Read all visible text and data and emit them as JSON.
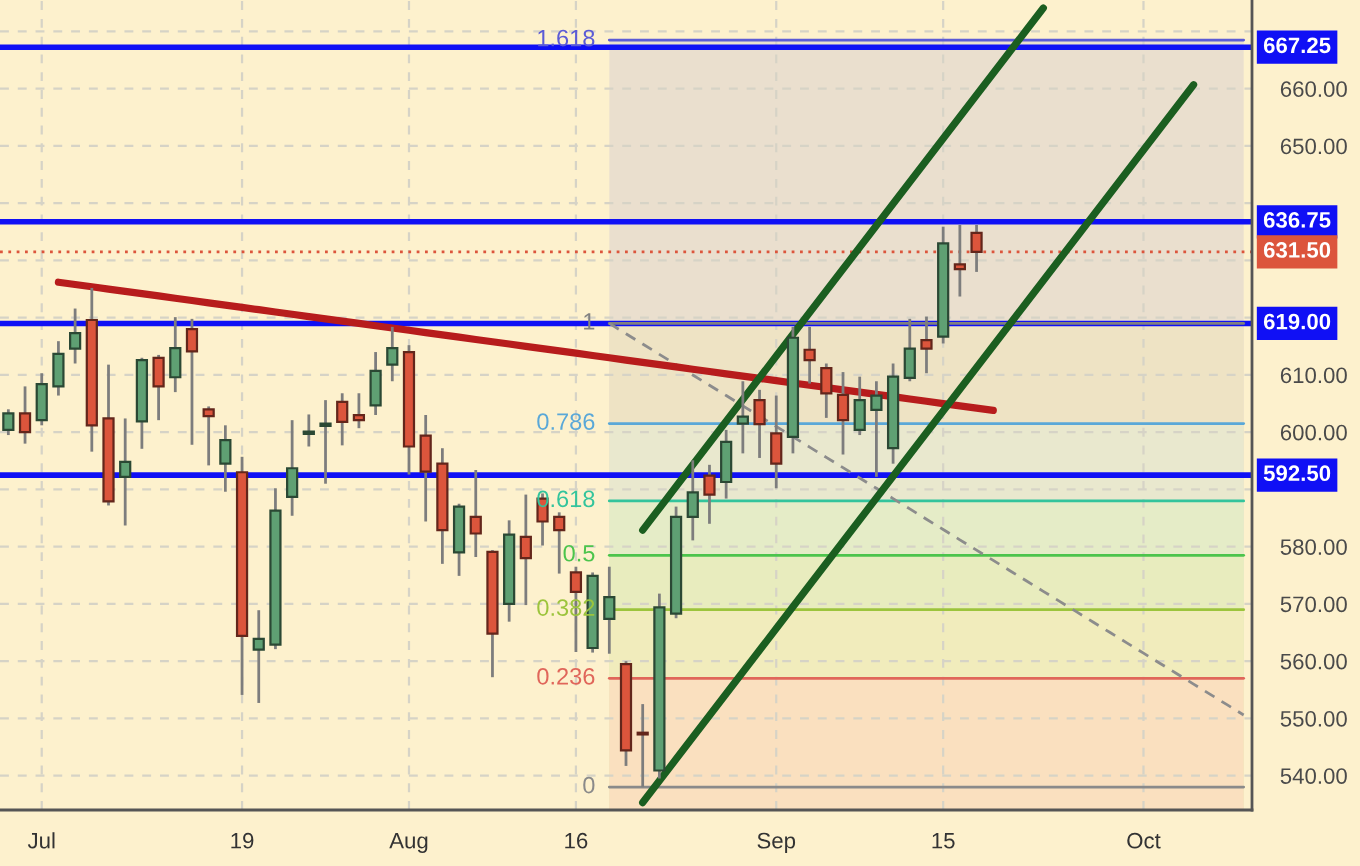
{
  "chart_data": {
    "type": "candlestick",
    "categories": [
      null,
      null,
      "Jul",
      null,
      null,
      null,
      null,
      null,
      null,
      null,
      null,
      null,
      null,
      null,
      "19",
      null,
      null,
      null,
      null,
      null,
      null,
      null,
      null,
      null,
      "Aug",
      null,
      null,
      null,
      null,
      null,
      null,
      null,
      null,
      null,
      "16",
      null,
      null,
      null,
      null,
      null,
      null,
      null,
      null,
      null,
      null,
      null,
      "Sep",
      null,
      null,
      null,
      null,
      null,
      null,
      null,
      null,
      null,
      "15",
      null,
      null,
      null,
      null,
      null,
      null,
      null,
      null,
      null,
      null,
      null,
      "Oct",
      null,
      null,
      null,
      null,
      null,
      null
    ],
    "ohlc": [
      [
        600.4,
        604.0,
        599.5,
        603.3
      ],
      [
        603.3,
        608.0,
        598.0,
        600.0
      ],
      [
        602.1,
        610.3,
        601.2,
        608.4
      ],
      [
        608.0,
        615.9,
        606.4,
        613.7
      ],
      [
        614.6,
        621.6,
        612.0,
        617.3
      ],
      [
        619.6,
        625.2,
        596.6,
        601.2
      ],
      [
        602.4,
        611.8,
        587.2,
        587.9
      ],
      [
        592.2,
        602.4,
        583.7,
        594.8
      ],
      [
        601.9,
        613.0,
        597.1,
        612.6
      ],
      [
        613.0,
        613.5,
        602.1,
        608.0
      ],
      [
        609.6,
        620.1,
        607.0,
        614.7
      ],
      [
        618.0,
        619.8,
        597.8,
        614.1
      ],
      [
        604.0,
        604.5,
        594.2,
        602.8
      ],
      [
        594.5,
        601.2,
        589.6,
        598.6
      ],
      [
        593.0,
        595.7,
        554.1,
        564.4
      ],
      [
        562.0,
        568.9,
        552.7,
        563.9
      ],
      [
        562.9,
        590.2,
        562.1,
        586.3
      ],
      [
        588.7,
        602.1,
        585.4,
        593.7
      ],
      [
        599.7,
        603.1,
        597.5,
        600.1
      ],
      [
        601.1,
        605.6,
        591.0,
        601.5
      ],
      [
        605.3,
        606.8,
        597.7,
        601.8
      ],
      [
        603.0,
        606.8,
        600.7,
        602.1
      ],
      [
        604.7,
        614.0,
        603.0,
        610.7
      ],
      [
        611.8,
        618.4,
        608.9,
        614.7
      ],
      [
        614.0,
        615.2,
        592.6,
        597.5
      ],
      [
        599.4,
        603.0,
        584.4,
        593.1
      ],
      [
        594.5,
        597.2,
        577.0,
        582.9
      ],
      [
        579.0,
        587.5,
        574.9,
        587.0
      ],
      [
        585.2,
        593.4,
        578.2,
        582.3
      ],
      [
        579.1,
        579.4,
        557.2,
        564.8
      ],
      [
        570.0,
        584.6,
        566.9,
        582.1
      ],
      [
        581.7,
        589.1,
        569.8,
        578.0
      ],
      [
        588.4,
        589.3,
        580.2,
        584.4
      ],
      [
        585.2,
        586.0,
        575.3,
        582.9
      ],
      [
        575.5,
        576.5,
        561.6,
        572.1
      ],
      [
        562.3,
        575.5,
        561.5,
        574.9
      ],
      [
        567.4,
        576.5,
        561.3,
        571.2
      ],
      [
        559.5,
        560.0,
        541.7,
        544.4
      ],
      [
        547.5,
        552.5,
        538.0,
        547.2
      ],
      [
        540.9,
        571.8,
        539.5,
        569.4
      ],
      [
        568.3,
        587.0,
        567.5,
        585.2
      ],
      [
        585.2,
        595.1,
        581.1,
        589.5
      ],
      [
        592.4,
        594.3,
        584.0,
        589.1
      ],
      [
        591.3,
        600.4,
        588.4,
        598.3
      ],
      [
        601.5,
        608.9,
        596.3,
        602.7
      ],
      [
        605.6,
        607.4,
        595.5,
        601.4
      ],
      [
        599.8,
        606.4,
        590.2,
        594.5
      ],
      [
        599.2,
        618.4,
        596.3,
        616.5
      ],
      [
        614.4,
        618.4,
        608.5,
        612.6
      ],
      [
        611.2,
        612.0,
        602.5,
        606.8
      ],
      [
        606.5,
        610.5,
        596.1,
        602.1
      ],
      [
        600.4,
        609.7,
        599.5,
        605.6
      ],
      [
        603.9,
        608.9,
        592.2,
        606.4
      ],
      [
        597.2,
        612.0,
        594.5,
        609.7
      ],
      [
        609.5,
        619.8,
        608.9,
        614.6
      ],
      [
        616.1,
        620.2,
        610.3,
        614.6
      ],
      [
        616.7,
        635.9,
        615.5,
        633.0
      ],
      [
        629.3,
        636.2,
        623.7,
        628.5
      ],
      [
        634.8,
        636.2,
        628.0,
        631.5
      ],
      null,
      null,
      null,
      null,
      null,
      null,
      null,
      null,
      null,
      null,
      null,
      null,
      null,
      null,
      null,
      null
    ],
    "colors": [
      "#5fa073",
      "#dc553c",
      "#5fa073",
      "#5fa073",
      "#5fa073",
      "#dc553c",
      "#dc553c",
      "#5fa073",
      "#5fa073",
      "#dc553c",
      "#5fa073",
      "#dc553c",
      "#dc553c",
      "#5fa073",
      "#dc553c",
      "#5fa073",
      "#5fa073",
      "#5fa073",
      "#5fa073",
      "#5fa073",
      "#dc553c",
      "#dc553c",
      "#5fa073",
      "#5fa073",
      "#dc553c",
      "#dc553c",
      "#dc553c",
      "#5fa073",
      "#dc553c",
      "#dc553c",
      "#5fa073",
      "#dc553c",
      "#dc553c",
      "#dc553c",
      "#dc553c",
      "#5fa073",
      "#5fa073",
      "#dc553c",
      "#dc553c",
      "#5fa073",
      "#5fa073",
      "#5fa073",
      "#dc553c",
      "#5fa073",
      "#5fa073",
      "#dc553c",
      "#dc553c",
      "#5fa073",
      "#dc553c",
      "#dc553c",
      "#dc553c",
      "#5fa073",
      "#5fa073",
      "#5fa073",
      "#5fa073",
      "#dc553c",
      "#5fa073",
      "#dc553c",
      "#dc553c",
      null,
      null,
      null,
      null,
      null,
      null,
      null,
      null,
      null,
      null,
      null,
      null,
      null,
      null,
      null,
      null
    ],
    "series": [
      {
        "type": "area",
        "name": "1.618",
        "color": "#5b5bd6",
        "values": [
          null,
          null,
          null,
          null,
          null,
          null,
          null,
          null,
          null,
          null,
          null,
          null,
          null,
          null,
          null,
          null,
          null,
          null,
          null,
          null,
          null,
          null,
          null,
          null,
          null,
          null,
          null,
          null,
          null,
          null,
          null,
          null,
          null,
          null,
          null,
          null,
          668.5,
          668.5,
          668.5,
          668.5,
          668.5,
          668.5,
          668.5,
          668.5,
          668.5,
          668.5,
          668.5,
          668.5,
          668.5,
          668.5,
          668.5,
          668.5,
          668.5,
          668.5,
          668.5,
          668.5,
          668.5,
          668.5,
          668.5,
          668.5,
          668.5,
          668.5,
          668.5,
          668.5,
          668.5,
          668.5,
          668.5,
          668.5,
          668.5,
          668.5,
          668.5,
          668.5,
          668.5,
          668.5,
          668.5
        ]
      },
      {
        "type": "area",
        "name": "1",
        "color": "#808080",
        "values": [
          null,
          null,
          null,
          null,
          null,
          null,
          null,
          null,
          null,
          null,
          null,
          null,
          null,
          null,
          null,
          null,
          null,
          null,
          null,
          null,
          null,
          null,
          null,
          null,
          null,
          null,
          null,
          null,
          null,
          null,
          null,
          null,
          null,
          null,
          null,
          null,
          619,
          619,
          619,
          619,
          619,
          619,
          619,
          619,
          619,
          619,
          619,
          619,
          619,
          619,
          619,
          619,
          619,
          619,
          619,
          619,
          619,
          619,
          619,
          619,
          619,
          619,
          619,
          619,
          619,
          619,
          619,
          619,
          619,
          619,
          619,
          619,
          619,
          619,
          619
        ]
      },
      {
        "type": "area",
        "name": "0.786",
        "color": "#5aa8d8",
        "values": [
          null,
          null,
          null,
          null,
          null,
          null,
          null,
          null,
          null,
          null,
          null,
          null,
          null,
          null,
          null,
          null,
          null,
          null,
          null,
          null,
          null,
          null,
          null,
          null,
          null,
          null,
          null,
          null,
          null,
          null,
          null,
          null,
          null,
          null,
          null,
          null,
          601.5,
          601.5,
          601.5,
          601.5,
          601.5,
          601.5,
          601.5,
          601.5,
          601.5,
          601.5,
          601.5,
          601.5,
          601.5,
          601.5,
          601.5,
          601.5,
          601.5,
          601.5,
          601.5,
          601.5,
          601.5,
          601.5,
          601.5,
          601.5,
          601.5,
          601.5,
          601.5,
          601.5,
          601.5,
          601.5,
          601.5,
          601.5,
          601.5,
          601.5,
          601.5,
          601.5,
          601.5,
          601.5,
          601.5
        ]
      },
      {
        "type": "area",
        "name": "0.618",
        "color": "#33c49c",
        "values": [
          null,
          null,
          null,
          null,
          null,
          null,
          null,
          null,
          null,
          null,
          null,
          null,
          null,
          null,
          null,
          null,
          null,
          null,
          null,
          null,
          null,
          null,
          null,
          null,
          null,
          null,
          null,
          null,
          null,
          null,
          null,
          null,
          null,
          null,
          null,
          null,
          588,
          588,
          588,
          588,
          588,
          588,
          588,
          588,
          588,
          588,
          588,
          588,
          588,
          588,
          588,
          588,
          588,
          588,
          588,
          588,
          588,
          588,
          588,
          588,
          588,
          588,
          588,
          588,
          588,
          588,
          588,
          588,
          588,
          588,
          588,
          588,
          588,
          588,
          588
        ]
      },
      {
        "type": "area",
        "name": "0.5",
        "color": "#4cc44c",
        "values": [
          null,
          null,
          null,
          null,
          null,
          null,
          null,
          null,
          null,
          null,
          null,
          null,
          null,
          null,
          null,
          null,
          null,
          null,
          null,
          null,
          null,
          null,
          null,
          null,
          null,
          null,
          null,
          null,
          null,
          null,
          null,
          null,
          null,
          null,
          null,
          null,
          578.5,
          578.5,
          578.5,
          578.5,
          578.5,
          578.5,
          578.5,
          578.5,
          578.5,
          578.5,
          578.5,
          578.5,
          578.5,
          578.5,
          578.5,
          578.5,
          578.5,
          578.5,
          578.5,
          578.5,
          578.5,
          578.5,
          578.5,
          578.5,
          578.5,
          578.5,
          578.5,
          578.5,
          578.5,
          578.5,
          578.5,
          578.5,
          578.5,
          578.5,
          578.5,
          578.5,
          578.5,
          578.5,
          578.5
        ]
      },
      {
        "type": "area",
        "name": "0.382",
        "color": "#9cc43c",
        "values": [
          null,
          null,
          null,
          null,
          null,
          null,
          null,
          null,
          null,
          null,
          null,
          null,
          null,
          null,
          null,
          null,
          null,
          null,
          null,
          null,
          null,
          null,
          null,
          null,
          null,
          null,
          null,
          null,
          null,
          null,
          null,
          null,
          null,
          null,
          null,
          null,
          569,
          569,
          569,
          569,
          569,
          569,
          569,
          569,
          569,
          569,
          569,
          569,
          569,
          569,
          569,
          569,
          569,
          569,
          569,
          569,
          569,
          569,
          569,
          569,
          569,
          569,
          569,
          569,
          569,
          569,
          569,
          569,
          569,
          569,
          569,
          569,
          569,
          569,
          569
        ]
      },
      {
        "type": "area",
        "name": "0.236",
        "color": "#e0665a",
        "values": [
          null,
          null,
          null,
          null,
          null,
          null,
          null,
          null,
          null,
          null,
          null,
          null,
          null,
          null,
          null,
          null,
          null,
          null,
          null,
          null,
          null,
          null,
          null,
          null,
          null,
          null,
          null,
          null,
          null,
          null,
          null,
          null,
          null,
          null,
          null,
          null,
          557,
          557,
          557,
          557,
          557,
          557,
          557,
          557,
          557,
          557,
          557,
          557,
          557,
          557,
          557,
          557,
          557,
          557,
          557,
          557,
          557,
          557,
          557,
          557,
          557,
          557,
          557,
          557,
          557,
          557,
          557,
          557,
          557,
          557,
          557,
          557,
          557,
          557,
          557
        ]
      },
      {
        "type": "line",
        "name": "0",
        "color": "#8a8a8a",
        "values": [
          null,
          null,
          null,
          null,
          null,
          null,
          null,
          null,
          null,
          null,
          null,
          null,
          null,
          null,
          null,
          null,
          null,
          null,
          null,
          null,
          null,
          null,
          null,
          null,
          null,
          null,
          null,
          null,
          null,
          null,
          null,
          null,
          null,
          null,
          null,
          null,
          538,
          538,
          538,
          538,
          538,
          538,
          538,
          538,
          538,
          538,
          538,
          538,
          538,
          538,
          538,
          538,
          538,
          538,
          538,
          538,
          538,
          538,
          538,
          538,
          538,
          538,
          538,
          538,
          538,
          538,
          538,
          538,
          538,
          538,
          538,
          538,
          538,
          538,
          538
        ]
      },
      {
        "type": "line",
        "color": "#8c8c8c",
        "line_style": "dashed",
        "values": [
          null,
          null,
          null,
          null,
          null,
          null,
          null,
          null,
          null,
          null,
          null,
          null,
          null,
          null,
          null,
          null,
          null,
          null,
          null,
          null,
          null,
          null,
          null,
          null,
          null,
          null,
          null,
          null,
          null,
          null,
          null,
          null,
          null,
          null,
          null,
          null,
          619.0,
          617.2,
          615.4,
          613.6,
          611.8,
          610.0,
          608.2,
          606.4,
          604.6,
          602.8,
          601.0,
          599.2,
          597.4,
          595.6,
          593.8,
          592.0,
          590.2,
          588.4,
          586.6,
          584.8,
          583.0,
          581.2,
          579.4,
          577.6,
          575.8,
          574.0,
          572.2,
          570.4,
          568.6,
          566.8,
          565.0,
          563.2,
          561.4,
          559.6,
          557.8,
          556.0,
          554.2,
          552.4,
          550.6
        ]
      },
      {
        "type": "line",
        "color": "#b71c1c",
        "values": [
          null,
          null,
          null,
          626.2,
          625.8,
          625.4,
          625.0,
          624.6,
          624.2,
          623.8,
          623.4,
          623.0,
          622.6,
          622.2,
          621.8,
          621.4,
          621.0,
          620.6,
          620.2,
          619.8,
          619.4,
          619.0,
          618.6,
          618.2,
          617.8,
          617.4,
          617.0,
          616.6,
          616.2,
          615.8,
          615.4,
          615.0,
          614.6,
          614.2,
          613.8,
          613.4,
          613.0,
          612.6,
          612.2,
          611.8,
          611.4,
          611.0,
          610.6,
          610.2,
          609.8,
          609.4,
          609.0,
          608.6,
          608.2,
          607.8,
          607.4,
          607.0,
          606.6,
          606.2,
          605.8,
          605.4,
          605.0,
          604.6,
          604.2,
          603.8,
          null,
          null,
          null,
          null,
          null,
          null,
          null,
          null,
          null,
          null,
          null,
          null,
          null,
          null,
          null
        ]
      },
      {
        "type": "line",
        "color": "#1b5e20",
        "values": [
          null,
          null,
          null,
          null,
          null,
          null,
          null,
          null,
          null,
          null,
          null,
          null,
          null,
          null,
          null,
          null,
          null,
          null,
          null,
          null,
          null,
          null,
          null,
          null,
          null,
          null,
          null,
          null,
          null,
          null,
          null,
          null,
          null,
          null,
          null,
          null,
          null,
          null,
          582.9,
          586.7,
          590.5,
          594.3,
          598.1,
          601.9,
          605.7,
          609.5,
          613.3,
          617.1,
          620.9,
          624.7,
          628.5,
          632.3,
          636.1,
          639.9,
          643.7,
          647.5,
          651.3,
          655.1,
          658.9,
          662.7,
          666.5,
          670.3,
          674.1,
          null,
          null,
          null,
          null,
          null,
          null,
          null,
          null,
          null,
          null,
          null,
          null
        ]
      },
      {
        "type": "line",
        "color": "#1b5e20",
        "values": [
          null,
          null,
          null,
          null,
          null,
          null,
          null,
          null,
          null,
          null,
          null,
          null,
          null,
          null,
          null,
          null,
          null,
          null,
          null,
          null,
          null,
          null,
          null,
          null,
          null,
          null,
          null,
          null,
          null,
          null,
          null,
          null,
          null,
          null,
          null,
          null,
          null,
          null,
          535.3,
          539.1,
          542.9,
          546.7,
          550.5,
          554.3,
          558.1,
          561.9,
          565.7,
          569.5,
          573.3,
          577.1,
          580.9,
          584.7,
          588.5,
          592.3,
          596.1,
          599.9,
          603.7,
          607.5,
          611.3,
          615.1,
          618.9,
          622.7,
          626.5,
          630.3,
          634.1,
          637.9,
          641.7,
          645.5,
          649.3,
          653.1,
          656.9,
          660.7,
          null,
          null,
          null
        ]
      }
    ],
    "ref_lines": [
      {
        "axis": "y",
        "value": 667.25,
        "label": "667.25",
        "color": "#1010f5"
      },
      {
        "axis": "y",
        "value": 636.75,
        "label": "636.75",
        "color": "#1010f5"
      },
      {
        "axis": "y",
        "value": 631.5,
        "label": "631.50",
        "color": "#dc553c",
        "line_style": "dotted"
      },
      {
        "axis": "y",
        "value": 619,
        "label": "619.00",
        "color": "#1010f5"
      },
      {
        "axis": "y",
        "value": 592.5,
        "label": "592.50",
        "color": "#1010f5"
      }
    ],
    "ylim": [
      534,
      675.5
    ],
    "yticks": [
      {
        "value": 540,
        "label": "540.00"
      },
      {
        "value": 550,
        "label": "550.00"
      },
      {
        "value": 560,
        "label": "560.00"
      },
      {
        "value": 570,
        "label": "570.00"
      },
      {
        "value": 580,
        "label": "580.00"
      },
      {
        "value": 590,
        "label": null
      },
      {
        "value": 600,
        "label": "600.00"
      },
      {
        "value": 610,
        "label": "610.00"
      },
      {
        "value": 620,
        "label": null
      },
      {
        "value": 630,
        "label": null
      },
      {
        "value": 640,
        "label": null
      },
      {
        "value": 650,
        "label": "650.00"
      },
      {
        "value": 660,
        "label": "660.00"
      },
      {
        "value": 670,
        "label": null
      }
    ],
    "grid": true
  }
}
